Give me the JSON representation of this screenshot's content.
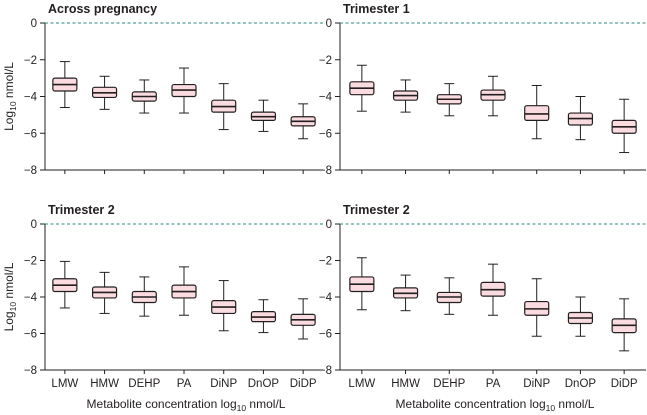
{
  "chart_data": [
    {
      "type": "box",
      "title": "Across pregnancy",
      "ylabel": "Log10 nmol/L",
      "xlabel": "",
      "ylim": [
        -8,
        0
      ],
      "yticks": [
        0,
        -2,
        -4,
        -6,
        -8
      ],
      "reference_line": 0,
      "categories": [
        "LMW",
        "HMW",
        "DEHP",
        "PA",
        "DiNP",
        "DnOP",
        "DiDP"
      ],
      "boxes": [
        {
          "min": -4.6,
          "q1": -3.7,
          "median": -3.35,
          "q3": -3.0,
          "max": -2.1
        },
        {
          "min": -4.7,
          "q1": -4.05,
          "median": -3.8,
          "q3": -3.5,
          "max": -2.9
        },
        {
          "min": -4.9,
          "q1": -4.25,
          "median": -4.0,
          "q3": -3.75,
          "max": -3.1
        },
        {
          "min": -4.9,
          "q1": -4.0,
          "median": -3.65,
          "q3": -3.35,
          "max": -2.45
        },
        {
          "min": -5.8,
          "q1": -4.85,
          "median": -4.55,
          "q3": -4.2,
          "max": -3.3
        },
        {
          "min": -5.9,
          "q1": -5.3,
          "median": -5.1,
          "q3": -4.85,
          "max": -4.2
        },
        {
          "min": -6.3,
          "q1": -5.6,
          "median": -5.35,
          "q3": -5.1,
          "max": -4.4
        }
      ]
    },
    {
      "type": "box",
      "title": "Trimester 1",
      "ylabel": "",
      "xlabel": "",
      "ylim": [
        -8,
        0
      ],
      "yticks": [
        0,
        -2,
        -4,
        -6,
        -8
      ],
      "reference_line": 0,
      "categories": [
        "LMW",
        "HMW",
        "DEHP",
        "PA",
        "DiNP",
        "DnOP",
        "DiDP"
      ],
      "boxes": [
        {
          "min": -4.8,
          "q1": -3.9,
          "median": -3.55,
          "q3": -3.2,
          "max": -2.3
        },
        {
          "min": -4.85,
          "q1": -4.2,
          "median": -3.95,
          "q3": -3.7,
          "max": -3.1
        },
        {
          "min": -5.05,
          "q1": -4.4,
          "median": -4.15,
          "q3": -3.9,
          "max": -3.3
        },
        {
          "min": -5.05,
          "q1": -4.2,
          "median": -3.9,
          "q3": -3.65,
          "max": -2.9
        },
        {
          "min": -6.3,
          "q1": -5.3,
          "median": -4.95,
          "q3": -4.5,
          "max": -3.4
        },
        {
          "min": -6.35,
          "q1": -5.55,
          "median": -5.2,
          "q3": -4.9,
          "max": -4.0
        },
        {
          "min": -7.05,
          "q1": -6.0,
          "median": -5.65,
          "q3": -5.3,
          "max": -4.15
        }
      ]
    },
    {
      "type": "box",
      "title": "Trimester 2",
      "ylabel": "Log10 nmol/L",
      "xlabel": "Metabolite concentration log10 nmol/L",
      "ylim": [
        -8,
        0
      ],
      "yticks": [
        0,
        -2,
        -4,
        -6,
        -8
      ],
      "reference_line": 0,
      "categories": [
        "LMW",
        "HMW",
        "DEHP",
        "PA",
        "DiNP",
        "DnOP",
        "DiDP"
      ],
      "boxes": [
        {
          "min": -4.6,
          "q1": -3.7,
          "median": -3.35,
          "q3": -3.0,
          "max": -2.05
        },
        {
          "min": -4.9,
          "q1": -4.05,
          "median": -3.75,
          "q3": -3.45,
          "max": -2.65
        },
        {
          "min": -5.05,
          "q1": -4.3,
          "median": -4.0,
          "q3": -3.7,
          "max": -2.9
        },
        {
          "min": -5.0,
          "q1": -4.05,
          "median": -3.7,
          "q3": -3.35,
          "max": -2.35
        },
        {
          "min": -5.85,
          "q1": -4.9,
          "median": -4.55,
          "q3": -4.2,
          "max": -3.1
        },
        {
          "min": -5.95,
          "q1": -5.35,
          "median": -5.1,
          "q3": -4.8,
          "max": -4.15
        },
        {
          "min": -6.3,
          "q1": -5.55,
          "median": -5.25,
          "q3": -4.95,
          "max": -4.1
        }
      ]
    },
    {
      "type": "box",
      "title": "Trimester 2",
      "ylabel": "",
      "xlabel": "Metabolite concentration log10 nmol/L",
      "ylim": [
        -8,
        0
      ],
      "yticks": [
        0,
        -2,
        -4,
        -6,
        -8
      ],
      "reference_line": 0,
      "categories": [
        "LMW",
        "HMW",
        "DEHP",
        "PA",
        "DiNP",
        "DnOP",
        "DiDP"
      ],
      "boxes": [
        {
          "min": -4.7,
          "q1": -3.7,
          "median": -3.3,
          "q3": -2.9,
          "max": -1.85
        },
        {
          "min": -4.75,
          "q1": -4.05,
          "median": -3.8,
          "q3": -3.5,
          "max": -2.8
        },
        {
          "min": -4.95,
          "q1": -4.3,
          "median": -4.0,
          "q3": -3.75,
          "max": -2.95
        },
        {
          "min": -5.0,
          "q1": -3.95,
          "median": -3.6,
          "q3": -3.2,
          "max": -2.2
        },
        {
          "min": -6.15,
          "q1": -5.0,
          "median": -4.65,
          "q3": -4.25,
          "max": -3.0
        },
        {
          "min": -6.15,
          "q1": -5.45,
          "median": -5.15,
          "q3": -4.85,
          "max": -4.0
        },
        {
          "min": -6.95,
          "q1": -5.95,
          "median": -5.55,
          "q3": -5.2,
          "max": -4.1
        }
      ]
    }
  ],
  "colors": {
    "box_fill": "#f9dbe0",
    "line": "#231f20",
    "reference": "#2a8a80"
  }
}
